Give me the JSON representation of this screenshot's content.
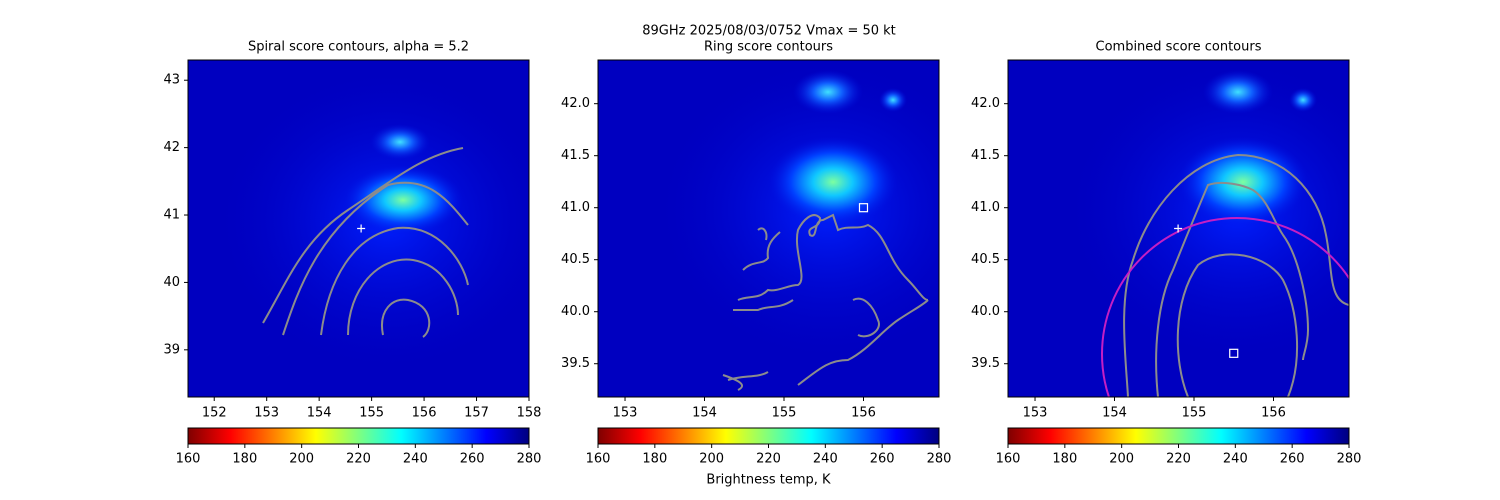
{
  "suptitle": "89GHz  2025/08/03/0752    Vmax = 50 kt",
  "chart_data": [
    {
      "type": "heatmap",
      "title": "Spiral score contours, alpha =  5.2",
      "colormap": "jet_r",
      "xlim": [
        151.5,
        158.0
      ],
      "ylim": [
        38.3,
        43.3
      ],
      "xticks": [
        152,
        153,
        154,
        155,
        156,
        157,
        158
      ],
      "yticks": [
        39,
        40,
        41,
        42,
        43
      ],
      "markers": [
        {
          "x": 154.8,
          "y": 40.8,
          "marker": "+",
          "color": "#ffffff"
        }
      ],
      "colorbar": {
        "lim": [
          160,
          280
        ],
        "ticks": [
          160,
          180,
          200,
          220,
          240,
          260,
          280
        ]
      }
    },
    {
      "type": "heatmap",
      "title": "Ring score contours",
      "colormap": "jet_r",
      "xlim": [
        152.66,
        156.95
      ],
      "ylim": [
        39.18,
        42.42
      ],
      "xticks": [
        153,
        154,
        155,
        156
      ],
      "yticks": [
        {
          "value": 39.5,
          "label": "39.5"
        },
        {
          "value": 40,
          "label": "40.0"
        },
        {
          "value": 40.5,
          "label": "40.5"
        },
        {
          "value": 41,
          "label": "41.0"
        },
        {
          "value": 41.5,
          "label": "41.5"
        },
        {
          "value": 42,
          "label": "42.0"
        }
      ],
      "markers": [
        {
          "x": 156.0,
          "y": 41.0,
          "marker": "s",
          "color": "#ffffff"
        }
      ],
      "colorbar": {
        "lim": [
          160,
          280
        ],
        "ticks": [
          160,
          180,
          200,
          220,
          240,
          260,
          280
        ],
        "label": "Brightness temp, K"
      }
    },
    {
      "type": "heatmap",
      "title": "Combined score contours",
      "colormap": "jet_r",
      "xlim": [
        152.66,
        156.95
      ],
      "ylim": [
        39.18,
        42.42
      ],
      "xticks": [
        153,
        154,
        155,
        156
      ],
      "yticks": [
        {
          "value": 39.5,
          "label": "39.5"
        },
        {
          "value": 40,
          "label": "40.0"
        },
        {
          "value": 40.5,
          "label": "40.5"
        },
        {
          "value": 41,
          "label": "41.0"
        },
        {
          "value": 41.5,
          "label": "41.5"
        },
        {
          "value": 42,
          "label": "42.0"
        }
      ],
      "markers": [
        {
          "x": 154.8,
          "y": 40.8,
          "marker": "+",
          "color": "#ffffff"
        },
        {
          "x": 155.5,
          "y": 39.6,
          "marker": "s",
          "color": "#ffffff"
        }
      ],
      "colorbar": {
        "lim": [
          160,
          280
        ],
        "ticks": [
          160,
          180,
          200,
          220,
          240,
          260,
          280
        ]
      }
    }
  ]
}
